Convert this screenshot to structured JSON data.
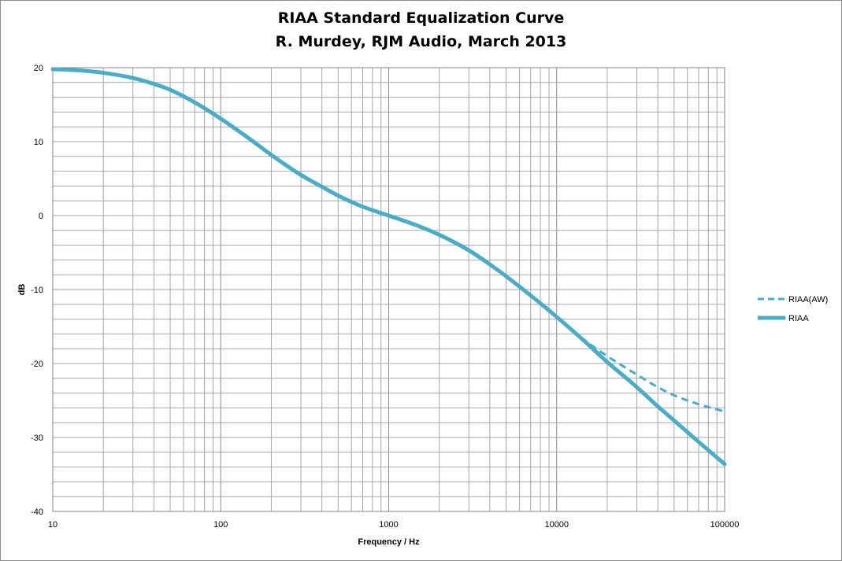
{
  "chart_data": {
    "type": "line",
    "title": "RIAA Standard Equalization Curve",
    "subtitle": "R. Murdey, RJM Audio, March 2013",
    "xlabel": "Frequency / Hz",
    "ylabel": "dB",
    "xscale": "log",
    "xlim": [
      10,
      100000
    ],
    "ylim": [
      -40,
      20
    ],
    "xticks": [
      10,
      100,
      1000,
      10000,
      100000
    ],
    "xtick_labels": [
      "10",
      "100",
      "1000",
      "10000",
      "100000"
    ],
    "yticks": [
      -40,
      -30,
      -20,
      -10,
      0,
      10,
      20
    ],
    "ytick_labels": [
      "-40",
      "-30",
      "-20",
      "-10",
      "0",
      "10",
      "20"
    ],
    "grid": true,
    "legend_position": "right",
    "series": [
      {
        "name": "RIAA(AW)",
        "style": "dashed",
        "color": "#4bacc6",
        "x": [
          10,
          15,
          20,
          30,
          40,
          50,
          70,
          100,
          150,
          200,
          300,
          400,
          500,
          700,
          1000,
          1500,
          2000,
          3000,
          4000,
          5000,
          7000,
          10000,
          15000,
          20000,
          30000,
          40000,
          50000,
          70000,
          100000
        ],
        "y": [
          19.8,
          19.6,
          19.3,
          18.6,
          17.8,
          17.0,
          15.3,
          13.1,
          10.3,
          8.2,
          5.5,
          3.9,
          2.7,
          1.2,
          0.0,
          -1.4,
          -2.6,
          -4.7,
          -6.6,
          -8.2,
          -10.8,
          -13.7,
          -17.0,
          -19.0,
          -21.5,
          -23.2,
          -24.3,
          -25.5,
          -26.5
        ]
      },
      {
        "name": "RIAA",
        "style": "solid",
        "color": "#4bacc6",
        "x": [
          10,
          15,
          20,
          30,
          40,
          50,
          70,
          100,
          150,
          200,
          300,
          400,
          500,
          700,
          1000,
          1500,
          2000,
          3000,
          4000,
          5000,
          7000,
          10000,
          15000,
          20000,
          30000,
          40000,
          50000,
          70000,
          100000
        ],
        "y": [
          19.8,
          19.6,
          19.3,
          18.6,
          17.8,
          17.0,
          15.3,
          13.1,
          10.3,
          8.2,
          5.5,
          3.9,
          2.7,
          1.2,
          0.0,
          -1.4,
          -2.6,
          -4.7,
          -6.6,
          -8.2,
          -10.8,
          -13.7,
          -17.2,
          -19.8,
          -23.2,
          -25.8,
          -27.7,
          -30.6,
          -33.6
        ]
      }
    ]
  }
}
